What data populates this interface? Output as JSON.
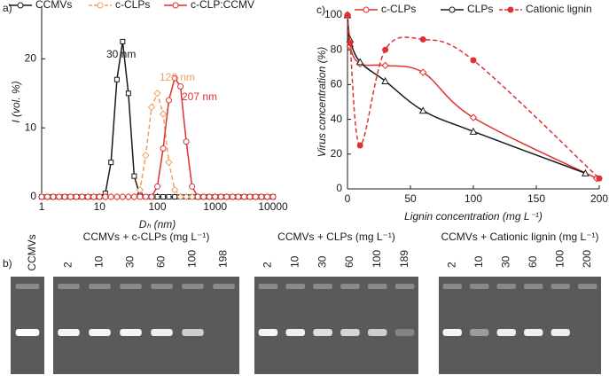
{
  "chart_data": [
    {
      "type": "line",
      "panel_label": "a)",
      "xlabel": "Dₕ (nm)",
      "ylabel": "I (vol. %)",
      "xscale": "log",
      "xlim": [
        1,
        10000
      ],
      "xticks": [
        1,
        10,
        100,
        1000,
        10000
      ],
      "ylim": [
        0,
        27.5
      ],
      "yticks": [
        0,
        10,
        20
      ],
      "x": [
        1,
        1.26,
        1.58,
        2,
        2.51,
        3.16,
        3.98,
        5.01,
        6.31,
        7.94,
        10,
        12.6,
        15.8,
        20,
        25.1,
        31.6,
        39.8,
        50.1,
        63.1,
        79.4,
        100,
        126,
        158,
        200,
        251,
        316,
        398,
        501,
        631,
        794,
        1000,
        1260,
        1580,
        2000,
        2510,
        3160,
        3980,
        5010,
        6310,
        7940,
        10000
      ],
      "series": [
        {
          "name": "CCMVs",
          "color": "#1a1a1a",
          "marker": "square",
          "dashed": false,
          "values": [
            0,
            0,
            0,
            0,
            0,
            0,
            0,
            0,
            0,
            0,
            0,
            0.5,
            5,
            17,
            22.5,
            15,
            3,
            0.2,
            0,
            0,
            0,
            0,
            0,
            0,
            0,
            0,
            0,
            0,
            0,
            0,
            0,
            0,
            0,
            0,
            0,
            0,
            0,
            0,
            0,
            0,
            0
          ]
        },
        {
          "name": "c-CLPs",
          "color": "#f0a060",
          "marker": "diamond",
          "dashed": true,
          "values": [
            0,
            0,
            0,
            0,
            0,
            0,
            0,
            0,
            0,
            0,
            0,
            0,
            0,
            0,
            0,
            0,
            0,
            1,
            6,
            13,
            15,
            12,
            5,
            1,
            0,
            0,
            0,
            0,
            0,
            0,
            0,
            0,
            0,
            0,
            0,
            0,
            0,
            0,
            0,
            0,
            0
          ]
        },
        {
          "name": "c-CLP:CCMV",
          "color": "#e03030",
          "marker": "circle",
          "dashed": false,
          "values": [
            0,
            0,
            0,
            0,
            0,
            0,
            0,
            0,
            0,
            0,
            0,
            0,
            0,
            0,
            0,
            0,
            0,
            0,
            0,
            0,
            1.5,
            7,
            14,
            17.2,
            16,
            8,
            1.5,
            0,
            0,
            0,
            0,
            0,
            0,
            0,
            0,
            0,
            0,
            0,
            0,
            0,
            0
          ]
        }
      ],
      "annotations": [
        {
          "text": "30 nm",
          "color": "#1a1a1a"
        },
        {
          "text": "126 nm",
          "color": "#f0a060"
        },
        {
          "text": "207 nm",
          "color": "#e03030"
        }
      ]
    },
    {
      "type": "line",
      "panel_label": "c)",
      "xlabel": "Lignin concentration (mg L⁻¹)",
      "ylabel": "Virus concentration (%)",
      "smooth": true,
      "xlim": [
        0,
        200
      ],
      "xticks": [
        0,
        50,
        100,
        150,
        200
      ],
      "ylim": [
        0,
        100
      ],
      "yticks": [
        0,
        20,
        40,
        60,
        80,
        100
      ],
      "series": [
        {
          "name": "c-CLPs",
          "color": "#e03030",
          "marker": "diamond",
          "dashed": false,
          "x": [
            0,
            2,
            10,
            30,
            60,
            100,
            198
          ],
          "values": [
            100,
            82,
            72,
            71,
            67,
            41,
            6
          ]
        },
        {
          "name": "CLPs",
          "color": "#1a1a1a",
          "marker": "triangle",
          "dashed": false,
          "x": [
            0,
            2,
            10,
            30,
            60,
            100,
            189
          ],
          "values": [
            100,
            86,
            73,
            62,
            45,
            33,
            9
          ]
        },
        {
          "name": "Cationic lignin",
          "color": "#e03030",
          "marker": "circle",
          "filled": true,
          "dashed": true,
          "x": [
            0,
            2,
            10,
            30,
            60,
            100,
            200
          ],
          "values": [
            100,
            84,
            25,
            80,
            86,
            74,
            6
          ]
        }
      ]
    }
  ],
  "gels": {
    "panel_label": "b)",
    "single_label": "CCMVs",
    "groups": [
      {
        "title": "CCMVs + c-CLPs (mg L⁻¹)",
        "lanes": [
          "2",
          "10",
          "30",
          "60",
          "100",
          "198"
        ]
      },
      {
        "title": "CCMVs + CLPs (mg L⁻¹)",
        "lanes": [
          "2",
          "10",
          "30",
          "60",
          "100",
          "189"
        ]
      },
      {
        "title": "CCMVs + Cationic lignin (mg L⁻¹)",
        "lanes": [
          "2",
          "10",
          "30",
          "60",
          "100",
          "200"
        ]
      }
    ]
  }
}
